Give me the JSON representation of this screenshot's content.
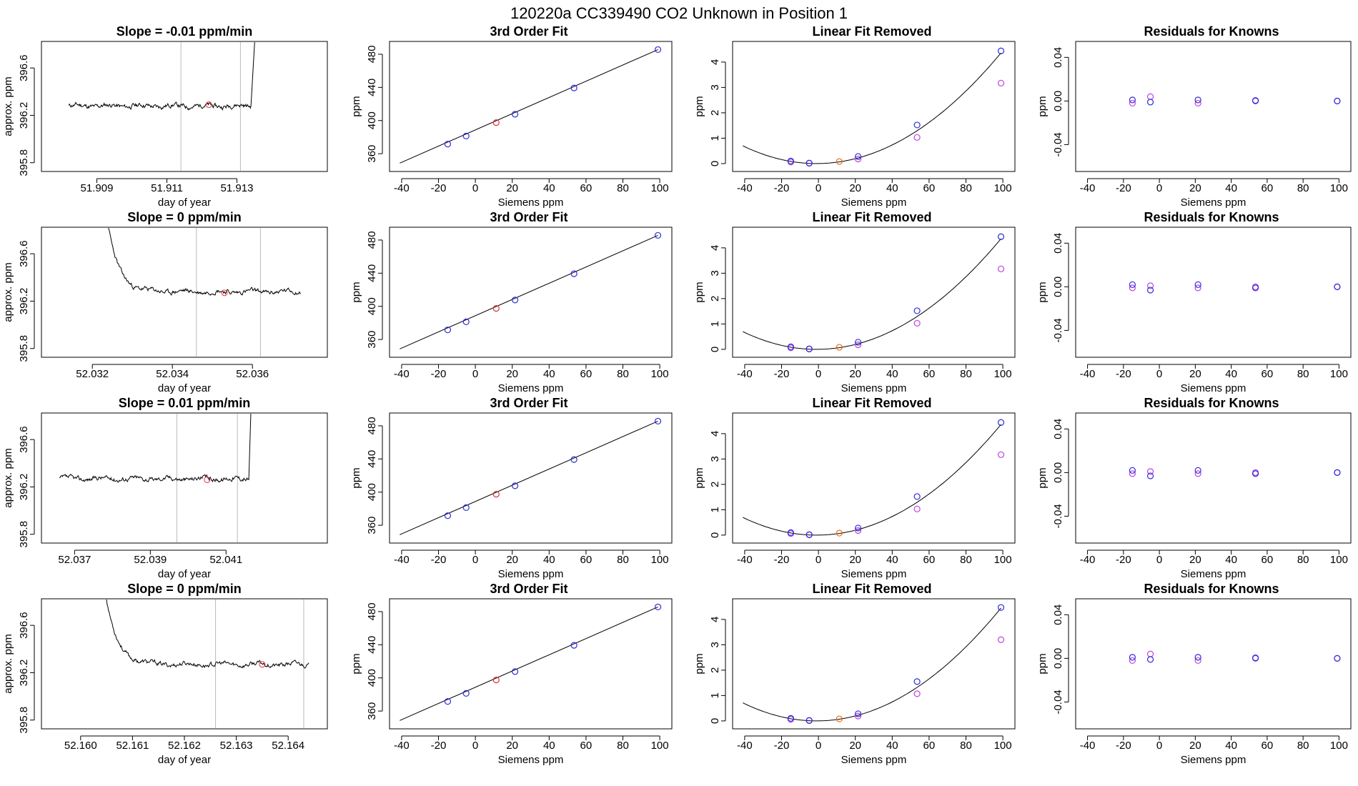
{
  "page_title": "120220a      CC339490    CO2 Unknown in Position  1",
  "colors": {
    "known_point": "#2b2bd9",
    "unknown_fit": "#e0303a",
    "unknown_residual": "#e86a10",
    "alt_residual": "#c040e0",
    "gridline": "#bbbbbb",
    "line": "#000000"
  },
  "chart_data": [
    {
      "type": "line",
      "panel": "timeseries",
      "title": "Slope =  -0.01  ppm/min",
      "xlabel": "day of year",
      "ylabel": "approx. ppm",
      "xlim": [
        51.9075,
        51.9155
      ],
      "ylim": [
        395.75,
        396.8
      ],
      "xticks": [
        51.909,
        51.911,
        51.913
      ],
      "xtick_labels": [
        "51.909",
        "51.911",
        "51.913"
      ],
      "yticks": [
        395.8,
        396.2,
        396.6
      ],
      "ytick_labels": [
        "395.8",
        "396.2",
        "396.6"
      ],
      "vlines": [
        51.9114,
        51.9131
      ],
      "series": [
        {
          "name": "trace",
          "x_start": 51.9082,
          "x_end": 51.9134,
          "level": 396.28,
          "noise": 0.018,
          "seed": 11,
          "spike": "end",
          "spike_x": 51.9136
        }
      ],
      "marker": {
        "x": 51.9122,
        "y": 396.29
      }
    },
    {
      "type": "scatter",
      "panel": "fit",
      "title": "3rd Order Fit",
      "xlabel": "Siemens ppm",
      "ylabel": "ppm",
      "xlim": [
        -45,
        105
      ],
      "ylim": [
        342,
        492
      ],
      "xticks": [
        -40,
        -20,
        0,
        20,
        40,
        60,
        80,
        100
      ],
      "xtick_labels": [
        "-40",
        "-20",
        "0",
        "20",
        "40",
        "60",
        "80",
        "100"
      ],
      "yticks": [
        360,
        400,
        440,
        480
      ],
      "ytick_labels": [
        "360",
        "400",
        "440",
        "480"
      ],
      "knowns": {
        "x": [
          -15,
          -5,
          21.5,
          53.5,
          99
        ],
        "y": [
          371.6,
          381.3,
          407.6,
          439.3,
          485.6
        ]
      },
      "unknown": {
        "x": [
          11.3
        ],
        "y": [
          397.5
        ]
      },
      "line": {
        "x": [
          -41,
          99
        ],
        "y": [
          348.6,
          485.6
        ]
      }
    },
    {
      "type": "scatter",
      "panel": "linear_removed",
      "title": "Linear Fit Removed",
      "xlabel": "Siemens ppm",
      "ylabel": "ppm",
      "xlim": [
        -45,
        105
      ],
      "ylim": [
        -0.2,
        4.7
      ],
      "xticks": [
        -40,
        -20,
        0,
        20,
        40,
        60,
        80,
        100
      ],
      "xtick_labels": [
        "-40",
        "-20",
        "0",
        "20",
        "40",
        "60",
        "80",
        "100"
      ],
      "yticks": [
        0,
        1,
        2,
        3,
        4
      ],
      "ytick_labels": [
        "0",
        "1",
        "2",
        "3",
        "4"
      ],
      "curve": {
        "vertex_x": -1,
        "a": 0.000436,
        "x_from": -41,
        "x_to": 99
      },
      "knowns": {
        "x": [
          -15,
          -5,
          21.5,
          53.5,
          99
        ],
        "y": [
          0.1,
          0.02,
          0.28,
          1.52,
          4.44
        ]
      },
      "alt": {
        "x": [
          -15,
          -5,
          21.5,
          53.5,
          99
        ],
        "y": [
          0.06,
          0.01,
          0.18,
          1.03,
          3.17
        ]
      },
      "unknown": {
        "x": [
          11.3
        ],
        "y": [
          0.08
        ]
      }
    },
    {
      "type": "scatter",
      "panel": "residuals",
      "title": "Residuals for Knowns",
      "xlabel": "Siemens ppm",
      "ylabel": "ppm",
      "xlim": [
        -45,
        105
      ],
      "ylim": [
        -0.062,
        0.052
      ],
      "xticks": [
        -40,
        -20,
        0,
        20,
        40,
        60,
        80,
        100
      ],
      "xtick_labels": [
        "-40",
        "-20",
        "0",
        "20",
        "40",
        "60",
        "80",
        "100"
      ],
      "yticks": [
        -0.04,
        0.0,
        0.04
      ],
      "ytick_labels": [
        "-0.04",
        "0.00",
        "0.04"
      ],
      "knowns": {
        "x": [
          -15,
          -5,
          21.5,
          53.5,
          99
        ],
        "y": [
          0.001,
          -0.001,
          0.001,
          0.0005,
          0.0
        ]
      },
      "alt": {
        "x": [
          -15,
          -5,
          21.5,
          53.5,
          99
        ],
        "y": [
          -0.002,
          0.004,
          -0.002,
          0.0,
          0.0
        ]
      }
    },
    {
      "type": "line",
      "panel": "timeseries",
      "title": "Slope =  0  ppm/min",
      "xlabel": "day of year",
      "ylabel": "approx. ppm",
      "xlim": [
        52.0308,
        52.0378
      ],
      "ylim": [
        395.75,
        396.8
      ],
      "xticks": [
        52.032,
        52.034,
        52.036
      ],
      "xtick_labels": [
        "52.032",
        "52.034",
        "52.036"
      ],
      "yticks": [
        395.8,
        396.2,
        396.6
      ],
      "ytick_labels": [
        "395.8",
        "396.2",
        "396.6"
      ],
      "vlines": [
        52.0346,
        52.0362
      ],
      "series": [
        {
          "name": "trace",
          "x_start": 52.0324,
          "x_end": 52.0372,
          "level": 396.28,
          "noise": 0.018,
          "seed": 23,
          "spike": "start",
          "spike_x": 52.0323
        }
      ],
      "marker": {
        "x": 52.0353,
        "y": 396.27
      }
    },
    {
      "type": "scatter",
      "panel": "fit",
      "title": "3rd Order Fit",
      "xlabel": "Siemens ppm",
      "ylabel": "ppm",
      "xlim": [
        -45,
        105
      ],
      "ylim": [
        342,
        492
      ],
      "xticks": [
        -40,
        -20,
        0,
        20,
        40,
        60,
        80,
        100
      ],
      "xtick_labels": [
        "-40",
        "-20",
        "0",
        "20",
        "40",
        "60",
        "80",
        "100"
      ],
      "yticks": [
        360,
        400,
        440,
        480
      ],
      "ytick_labels": [
        "360",
        "400",
        "440",
        "480"
      ],
      "knowns": {
        "x": [
          -15,
          -5,
          21.5,
          53.5,
          99
        ],
        "y": [
          371.6,
          381.3,
          407.6,
          439.3,
          485.6
        ]
      },
      "unknown": {
        "x": [
          11.3
        ],
        "y": [
          397.5
        ]
      },
      "line": {
        "x": [
          -41,
          99
        ],
        "y": [
          348.6,
          485.6
        ]
      }
    },
    {
      "type": "scatter",
      "panel": "linear_removed",
      "title": "Linear Fit Removed",
      "xlabel": "Siemens ppm",
      "ylabel": "ppm",
      "xlim": [
        -45,
        105
      ],
      "ylim": [
        -0.2,
        4.7
      ],
      "xticks": [
        -40,
        -20,
        0,
        20,
        40,
        60,
        80,
        100
      ],
      "xtick_labels": [
        "-40",
        "-20",
        "0",
        "20",
        "40",
        "60",
        "80",
        "100"
      ],
      "yticks": [
        0,
        1,
        2,
        3,
        4
      ],
      "ytick_labels": [
        "0",
        "1",
        "2",
        "3",
        "4"
      ],
      "curve": {
        "vertex_x": -1,
        "a": 0.000436,
        "x_from": -41,
        "x_to": 99
      },
      "knowns": {
        "x": [
          -15,
          -5,
          21.5,
          53.5,
          99
        ],
        "y": [
          0.1,
          0.02,
          0.28,
          1.52,
          4.44
        ]
      },
      "alt": {
        "x": [
          -15,
          -5,
          21.5,
          53.5,
          99
        ],
        "y": [
          0.06,
          0.01,
          0.18,
          1.03,
          3.17
        ]
      },
      "unknown": {
        "x": [
          11.3
        ],
        "y": [
          0.08
        ]
      }
    },
    {
      "type": "scatter",
      "panel": "residuals",
      "title": "Residuals for Knowns",
      "xlabel": "Siemens ppm",
      "ylabel": "ppm",
      "xlim": [
        -45,
        105
      ],
      "ylim": [
        -0.062,
        0.052
      ],
      "xticks": [
        -40,
        -20,
        0,
        20,
        40,
        60,
        80,
        100
      ],
      "xtick_labels": [
        "-40",
        "-20",
        "0",
        "20",
        "40",
        "60",
        "80",
        "100"
      ],
      "yticks": [
        -0.04,
        0.0,
        0.04
      ],
      "ytick_labels": [
        "-0.04",
        "0.00",
        "0.04"
      ],
      "knowns": {
        "x": [
          -15,
          -5,
          21.5,
          53.5,
          99
        ],
        "y": [
          0.002,
          -0.003,
          0.002,
          -0.001,
          0.0
        ]
      },
      "alt": {
        "x": [
          -15,
          -5,
          21.5,
          53.5,
          99
        ],
        "y": [
          -0.001,
          0.001,
          -0.001,
          0.0,
          0.0
        ]
      }
    },
    {
      "type": "line",
      "panel": "timeseries",
      "title": "Slope =  0.01  ppm/min",
      "xlabel": "day of year",
      "ylabel": "approx. ppm",
      "xlim": [
        52.0362,
        52.0436
      ],
      "ylim": [
        395.75,
        396.8
      ],
      "xticks": [
        52.037,
        52.039,
        52.041
      ],
      "xtick_labels": [
        "52.037",
        "52.039",
        "52.041"
      ],
      "yticks": [
        395.8,
        396.2,
        396.6
      ],
      "ytick_labels": [
        "395.8",
        "396.2",
        "396.6"
      ],
      "vlines": [
        52.0397,
        52.0413
      ],
      "series": [
        {
          "name": "trace",
          "x_start": 52.0366,
          "x_end": 52.0416,
          "level": 396.27,
          "noise": 0.018,
          "seed": 37,
          "spike": "end",
          "spike_x": 52.0417
        }
      ],
      "marker": {
        "x": 52.0405,
        "y": 396.26
      }
    },
    {
      "type": "scatter",
      "panel": "fit",
      "title": "3rd Order Fit",
      "xlabel": "Siemens ppm",
      "ylabel": "ppm",
      "xlim": [
        -45,
        105
      ],
      "ylim": [
        342,
        492
      ],
      "xticks": [
        -40,
        -20,
        0,
        20,
        40,
        60,
        80,
        100
      ],
      "xtick_labels": [
        "-40",
        "-20",
        "0",
        "20",
        "40",
        "60",
        "80",
        "100"
      ],
      "yticks": [
        360,
        400,
        440,
        480
      ],
      "ytick_labels": [
        "360",
        "400",
        "440",
        "480"
      ],
      "knowns": {
        "x": [
          -15,
          -5,
          21.5,
          53.5,
          99
        ],
        "y": [
          371.6,
          381.3,
          407.6,
          439.3,
          485.6
        ]
      },
      "unknown": {
        "x": [
          11.3
        ],
        "y": [
          397.5
        ]
      },
      "line": {
        "x": [
          -41,
          99
        ],
        "y": [
          348.6,
          485.6
        ]
      }
    },
    {
      "type": "scatter",
      "panel": "linear_removed",
      "title": "Linear Fit Removed",
      "xlabel": "Siemens ppm",
      "ylabel": "ppm",
      "xlim": [
        -45,
        105
      ],
      "ylim": [
        -0.2,
        4.7
      ],
      "xticks": [
        -40,
        -20,
        0,
        20,
        40,
        60,
        80,
        100
      ],
      "xtick_labels": [
        "-40",
        "-20",
        "0",
        "20",
        "40",
        "60",
        "80",
        "100"
      ],
      "yticks": [
        0,
        1,
        2,
        3,
        4
      ],
      "ytick_labels": [
        "0",
        "1",
        "2",
        "3",
        "4"
      ],
      "curve": {
        "vertex_x": -1,
        "a": 0.000436,
        "x_from": -41,
        "x_to": 99
      },
      "knowns": {
        "x": [
          -15,
          -5,
          21.5,
          53.5,
          99
        ],
        "y": [
          0.1,
          0.02,
          0.28,
          1.52,
          4.44
        ]
      },
      "alt": {
        "x": [
          -15,
          -5,
          21.5,
          53.5,
          99
        ],
        "y": [
          0.06,
          0.01,
          0.18,
          1.03,
          3.17
        ]
      },
      "unknown": {
        "x": [
          11.3
        ],
        "y": [
          0.08
        ]
      }
    },
    {
      "type": "scatter",
      "panel": "residuals",
      "title": "Residuals for Knowns",
      "xlabel": "Siemens ppm",
      "ylabel": "ppm",
      "xlim": [
        -45,
        105
      ],
      "ylim": [
        -0.062,
        0.052
      ],
      "xticks": [
        -40,
        -20,
        0,
        20,
        40,
        60,
        80,
        100
      ],
      "xtick_labels": [
        "-40",
        "-20",
        "0",
        "20",
        "40",
        "60",
        "80",
        "100"
      ],
      "yticks": [
        -0.04,
        0.0,
        0.04
      ],
      "ytick_labels": [
        "-0.04",
        "0.00",
        "0.04"
      ],
      "knowns": {
        "x": [
          -15,
          -5,
          21.5,
          53.5,
          99
        ],
        "y": [
          0.002,
          -0.003,
          0.002,
          -0.001,
          0.0
        ]
      },
      "alt": {
        "x": [
          -15,
          -5,
          21.5,
          53.5,
          99
        ],
        "y": [
          -0.001,
          0.001,
          -0.001,
          0.0,
          0.0
        ]
      }
    },
    {
      "type": "line",
      "panel": "timeseries",
      "title": "Slope =  0  ppm/min",
      "xlabel": "day of year",
      "ylabel": "approx. ppm",
      "xlim": [
        52.1593,
        52.1647
      ],
      "ylim": [
        395.75,
        396.8
      ],
      "xticks": [
        52.16,
        52.161,
        52.162,
        52.163,
        52.164
      ],
      "xtick_labels": [
        "52.160",
        "52.161",
        "52.162",
        "52.163",
        "52.164"
      ],
      "yticks": [
        395.8,
        396.2,
        396.6
      ],
      "ytick_labels": [
        "395.8",
        "396.2",
        "396.6"
      ],
      "vlines": [
        52.1626,
        52.1643
      ],
      "series": [
        {
          "name": "trace",
          "x_start": 52.1605,
          "x_end": 52.1644,
          "level": 396.27,
          "noise": 0.018,
          "seed": 53,
          "spike": "start",
          "spike_x": 52.1604
        }
      ],
      "marker": {
        "x": 52.1635,
        "y": 396.27
      }
    },
    {
      "type": "scatter",
      "panel": "fit",
      "title": "3rd Order Fit",
      "xlabel": "Siemens ppm",
      "ylabel": "ppm",
      "xlim": [
        -45,
        105
      ],
      "ylim": [
        342,
        492
      ],
      "xticks": [
        -40,
        -20,
        0,
        20,
        40,
        60,
        80,
        100
      ],
      "xtick_labels": [
        "-40",
        "-20",
        "0",
        "20",
        "40",
        "60",
        "80",
        "100"
      ],
      "yticks": [
        360,
        400,
        440,
        480
      ],
      "ytick_labels": [
        "360",
        "400",
        "440",
        "480"
      ],
      "knowns": {
        "x": [
          -15,
          -5,
          21.5,
          53.5,
          99
        ],
        "y": [
          371.6,
          381.3,
          407.6,
          439.3,
          485.6
        ]
      },
      "unknown": {
        "x": [
          11.3
        ],
        "y": [
          397.5
        ]
      },
      "line": {
        "x": [
          -41,
          99
        ],
        "y": [
          348.6,
          485.6
        ]
      }
    },
    {
      "type": "scatter",
      "panel": "linear_removed",
      "title": "Linear Fit Removed",
      "xlabel": "Siemens ppm",
      "ylabel": "ppm",
      "xlim": [
        -45,
        105
      ],
      "ylim": [
        -0.2,
        4.7
      ],
      "xticks": [
        -40,
        -20,
        0,
        20,
        40,
        60,
        80,
        100
      ],
      "xtick_labels": [
        "-40",
        "-20",
        "0",
        "20",
        "40",
        "60",
        "80",
        "100"
      ],
      "yticks": [
        0,
        1,
        2,
        3,
        4
      ],
      "ytick_labels": [
        "0",
        "1",
        "2",
        "3",
        "4"
      ],
      "curve": {
        "vertex_x": -1,
        "a": 0.000445,
        "x_from": -41,
        "x_to": 99
      },
      "knowns": {
        "x": [
          -15,
          -5,
          21.5,
          53.5,
          99
        ],
        "y": [
          0.1,
          0.02,
          0.28,
          1.55,
          4.47
        ]
      },
      "alt": {
        "x": [
          -15,
          -5,
          21.5,
          53.5,
          99
        ],
        "y": [
          0.06,
          0.01,
          0.19,
          1.07,
          3.2
        ]
      },
      "unknown": {
        "x": [
          11.3
        ],
        "y": [
          0.08
        ]
      }
    },
    {
      "type": "scatter",
      "panel": "residuals",
      "title": "Residuals for Knowns",
      "xlabel": "Siemens ppm",
      "ylabel": "ppm",
      "xlim": [
        -45,
        105
      ],
      "ylim": [
        -0.062,
        0.052
      ],
      "xticks": [
        -40,
        -20,
        0,
        20,
        40,
        60,
        80,
        100
      ],
      "xtick_labels": [
        "-40",
        "-20",
        "0",
        "20",
        "40",
        "60",
        "80",
        "100"
      ],
      "yticks": [
        -0.04,
        0.0,
        0.04
      ],
      "ytick_labels": [
        "-0.04",
        "0.00",
        "0.04"
      ],
      "knowns": {
        "x": [
          -15,
          -5,
          21.5,
          53.5,
          99
        ],
        "y": [
          0.001,
          -0.001,
          0.001,
          0.0005,
          0.0
        ]
      },
      "alt": {
        "x": [
          -15,
          -5,
          21.5,
          53.5,
          99
        ],
        "y": [
          -0.002,
          0.004,
          -0.002,
          0.0,
          0.0
        ]
      }
    }
  ]
}
